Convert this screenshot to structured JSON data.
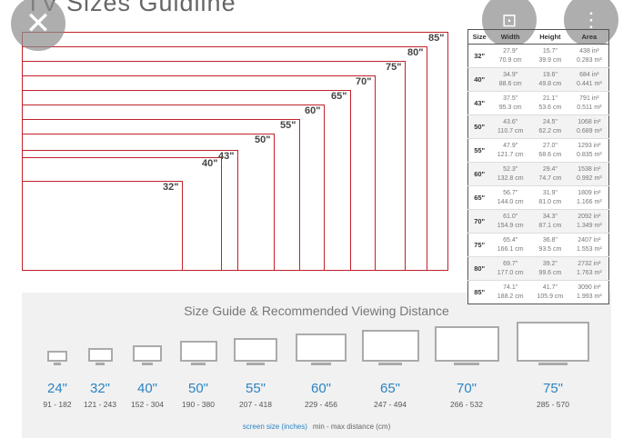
{
  "title": "TV Sizes Guidline",
  "diagram_labels": [
    "85\"",
    "80\"",
    "75\"",
    "70\"",
    "65\"",
    "60\"",
    "55\"",
    "50\"",
    "43\"",
    "40\"",
    "32\""
  ],
  "table": {
    "headers": [
      "Size",
      "Width",
      "Height",
      "Area"
    ],
    "rows": [
      [
        "32\"",
        "27.9\"",
        "70.9 cm",
        "15.7\"",
        "39.9 cm",
        "438 in²",
        "0.283 m²"
      ],
      [
        "40\"",
        "34.9\"",
        "88.6 cm",
        "19.6\"",
        "49.8 cm",
        "684 in²",
        "0.441 m²"
      ],
      [
        "43\"",
        "37.5\"",
        "95.3 cm",
        "21.1\"",
        "53.6 cm",
        "791 in²",
        "0.511 m²"
      ],
      [
        "50\"",
        "43.6\"",
        "110.7 cm",
        "24.5\"",
        "62.2 cm",
        "1068 in²",
        "0.689 m²"
      ],
      [
        "55\"",
        "47.9\"",
        "121.7 cm",
        "27.0\"",
        "68.6 cm",
        "1293 in²",
        "0.835 m²"
      ],
      [
        "60\"",
        "52.3\"",
        "132.8 cm",
        "29.4\"",
        "74.7 cm",
        "1538 in²",
        "0.992 m²"
      ],
      [
        "65\"",
        "56.7\"",
        "144.0 cm",
        "31.9\"",
        "81.0 cm",
        "1809 in²",
        "1.166 m²"
      ],
      [
        "70\"",
        "61.0\"",
        "154.9 cm",
        "34.3\"",
        "87.1 cm",
        "2092 in²",
        "1.349 m²"
      ],
      [
        "75\"",
        "65.4\"",
        "166.1 cm",
        "36.8\"",
        "93.5 cm",
        "2407 in²",
        "1.553 m²"
      ],
      [
        "80\"",
        "69.7\"",
        "177.0 cm",
        "39.2\"",
        "99.6 cm",
        "2732 in²",
        "1.763 m²"
      ],
      [
        "85\"",
        "74.1\"",
        "188.2 cm",
        "41.7\"",
        "105.9 cm",
        "3090 in²",
        "1.993 m²"
      ]
    ]
  },
  "viewing": {
    "title": "Size Guide & Recommended Viewing Distance",
    "items": [
      {
        "size": "24\"",
        "dist": "91 - 182"
      },
      {
        "size": "32\"",
        "dist": "121 - 243"
      },
      {
        "size": "40\"",
        "dist": "152 - 304"
      },
      {
        "size": "50\"",
        "dist": "190 - 380"
      },
      {
        "size": "55\"",
        "dist": "207 - 418"
      },
      {
        "size": "60\"",
        "dist": "229 - 456"
      },
      {
        "size": "65\"",
        "dist": "247 - 494"
      },
      {
        "size": "70\"",
        "dist": "266 - 532"
      },
      {
        "size": "75\"",
        "dist": "285 - 570"
      }
    ],
    "legend_size": "screen size (inches)",
    "legend_dist": "min - max distance (cm)"
  },
  "colors": {
    "frame": "#c0222a",
    "size_text": "#2b84c3"
  },
  "overlay": {
    "close": "close-icon",
    "lens": "lens-search-icon",
    "more": "more-vertical-icon"
  }
}
